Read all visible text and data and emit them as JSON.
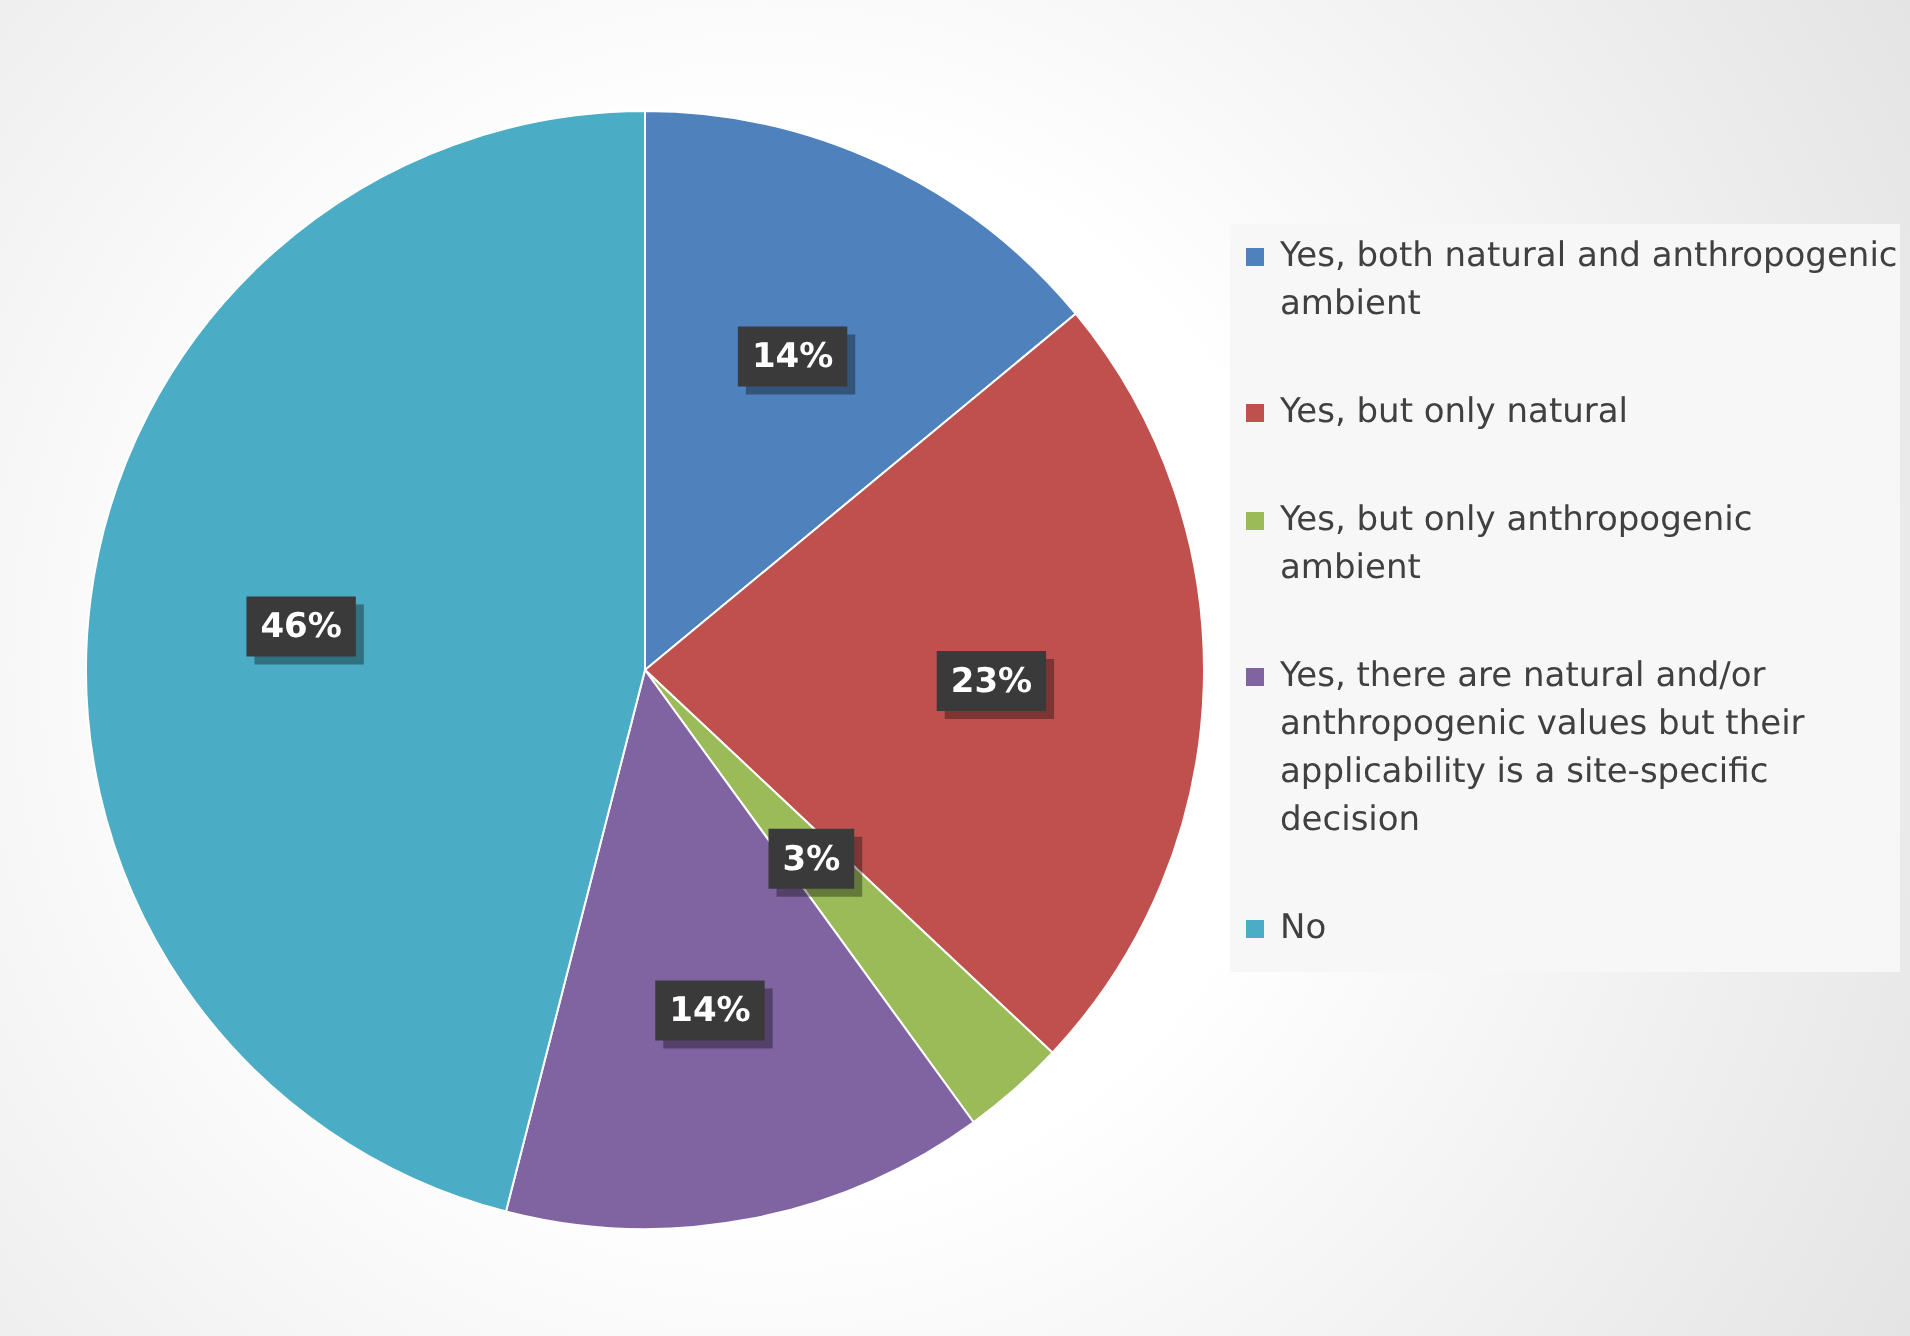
{
  "chart_data": {
    "type": "pie",
    "categories": [
      "Yes, both natural and anthropogenic ambient",
      "Yes, but only natural",
      "Yes, but only anthropogenic ambient",
      "Yes, there are natural and/or anthropogenic values but their applicability is a site-specific decision",
      "No"
    ],
    "values": [
      14,
      23,
      3,
      14,
      46
    ],
    "colors": [
      "#4f81bd",
      "#c0504d",
      "#9bbb59",
      "#8064a2",
      "#4bacc6"
    ],
    "value_labels": [
      "14%",
      "23%",
      "3%",
      "14%",
      "46%"
    ],
    "legend": "right"
  }
}
